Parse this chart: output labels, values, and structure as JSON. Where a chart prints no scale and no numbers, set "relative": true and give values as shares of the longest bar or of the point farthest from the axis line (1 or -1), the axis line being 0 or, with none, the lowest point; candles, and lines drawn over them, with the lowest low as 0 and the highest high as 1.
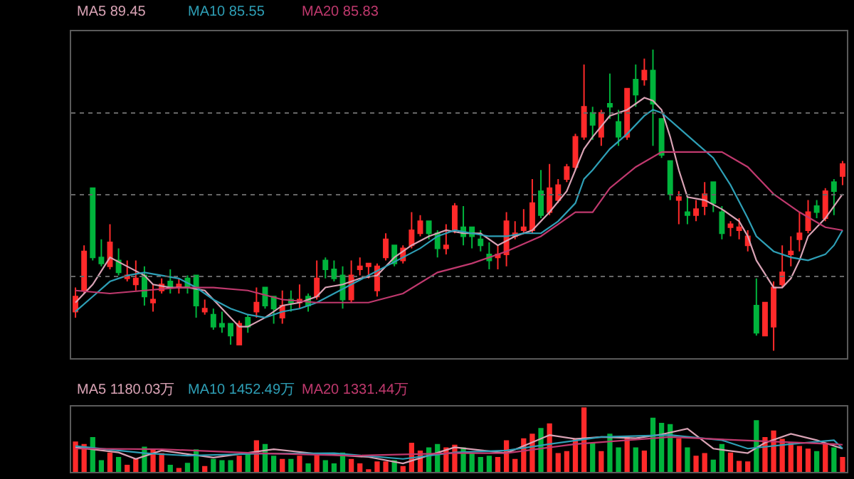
{
  "chart_data": [
    {
      "type": "candlestick",
      "relative": true,
      "grid": "y",
      "categories": [
        null,
        null,
        null,
        null,
        null,
        null,
        null,
        null,
        null,
        null,
        null,
        null,
        null,
        null,
        null,
        null,
        null,
        null,
        null,
        null,
        null,
        null,
        null,
        null,
        null,
        null,
        null,
        null,
        null,
        null,
        null,
        null,
        null,
        null,
        null,
        null,
        null,
        null,
        null,
        null,
        null,
        null,
        null,
        null,
        null,
        null,
        null,
        null,
        null,
        null,
        null,
        null,
        null,
        null,
        null,
        null,
        null,
        null,
        null,
        null,
        null,
        null,
        null,
        null,
        null,
        null,
        null,
        null,
        null,
        null,
        null,
        null,
        null,
        null,
        null,
        null,
        null,
        null,
        null,
        null,
        null,
        null,
        null,
        null,
        null,
        null,
        null,
        null,
        null,
        null
      ],
      "ohlc": [
        [
          0.13,
          0.21,
          0.11,
          0.18
        ],
        [
          0.2,
          0.35,
          0.19,
          0.33
        ],
        [
          0.54,
          0.54,
          0.3,
          0.31
        ],
        [
          0.31,
          0.37,
          0.28,
          0.29
        ],
        [
          0.28,
          0.42,
          0.27,
          0.36
        ],
        [
          0.3,
          0.34,
          0.25,
          0.26
        ],
        [
          0.24,
          0.3,
          0.23,
          0.25
        ],
        [
          0.22,
          0.3,
          0.2,
          0.24
        ],
        [
          0.25,
          0.28,
          0.15,
          0.18
        ],
        [
          0.16,
          0.22,
          0.13,
          0.17
        ],
        [
          0.2,
          0.24,
          0.19,
          0.22
        ],
        [
          0.23,
          0.27,
          0.19,
          0.21
        ],
        [
          0.21,
          0.24,
          0.19,
          0.22
        ],
        [
          0.24,
          0.25,
          0.19,
          0.21
        ],
        [
          0.25,
          0.25,
          0.11,
          0.15
        ],
        [
          0.13,
          0.17,
          0.12,
          0.14
        ],
        [
          0.12,
          0.14,
          0.07,
          0.08
        ],
        [
          0.09,
          0.13,
          0.06,
          0.08
        ],
        [
          0.09,
          0.09,
          0.02,
          0.05
        ],
        [
          0.02,
          0.1,
          0.02,
          0.09
        ],
        [
          0.11,
          0.12,
          0.06,
          0.08
        ],
        [
          0.13,
          0.21,
          0.11,
          0.16
        ],
        [
          0.21,
          0.21,
          0.14,
          0.15
        ],
        [
          0.18,
          0.18,
          0.09,
          0.14
        ],
        [
          0.11,
          0.2,
          0.09,
          0.15
        ],
        [
          0.17,
          0.2,
          0.13,
          0.16
        ],
        [
          0.16,
          0.22,
          0.14,
          0.17
        ],
        [
          0.18,
          0.19,
          0.13,
          0.15
        ],
        [
          0.18,
          0.3,
          0.17,
          0.24
        ],
        [
          0.3,
          0.31,
          0.24,
          0.27
        ],
        [
          0.27,
          0.3,
          0.23,
          0.24
        ],
        [
          0.25,
          0.28,
          0.14,
          0.17
        ],
        [
          0.17,
          0.3,
          0.16,
          0.25
        ],
        [
          0.27,
          0.31,
          0.25,
          0.28
        ],
        [
          0.28,
          0.29,
          0.24,
          0.29
        ],
        [
          0.2,
          0.29,
          0.18,
          0.28
        ],
        [
          0.31,
          0.39,
          0.3,
          0.37
        ],
        [
          0.35,
          0.35,
          0.28,
          0.29
        ],
        [
          0.3,
          0.35,
          0.29,
          0.34
        ],
        [
          0.35,
          0.46,
          0.34,
          0.4
        ],
        [
          0.39,
          0.45,
          0.38,
          0.43
        ],
        [
          0.43,
          0.43,
          0.37,
          0.39
        ],
        [
          0.39,
          0.4,
          0.31,
          0.34
        ],
        [
          0.34,
          0.42,
          0.32,
          0.35
        ],
        [
          0.4,
          0.49,
          0.39,
          0.48
        ],
        [
          0.41,
          0.48,
          0.35,
          0.38
        ],
        [
          0.41,
          0.41,
          0.34,
          0.38
        ],
        [
          0.37,
          0.4,
          0.33,
          0.35
        ],
        [
          0.32,
          0.36,
          0.27,
          0.3
        ],
        [
          0.31,
          0.35,
          0.27,
          0.32
        ],
        [
          0.32,
          0.46,
          0.28,
          0.43
        ],
        [
          0.38,
          0.43,
          0.37,
          0.39
        ],
        [
          0.4,
          0.47,
          0.39,
          0.41
        ],
        [
          0.4,
          0.57,
          0.39,
          0.49
        ],
        [
          0.53,
          0.6,
          0.44,
          0.45
        ],
        [
          0.46,
          0.62,
          0.45,
          0.54
        ],
        [
          0.5,
          0.57,
          0.49,
          0.55
        ],
        [
          0.57,
          0.62,
          0.56,
          0.61
        ],
        [
          0.61,
          0.72,
          0.6,
          0.71
        ],
        [
          0.71,
          0.95,
          0.7,
          0.81
        ],
        [
          0.79,
          0.81,
          0.7,
          0.75
        ],
        [
          0.71,
          0.8,
          0.68,
          0.79
        ],
        [
          0.82,
          0.92,
          0.77,
          0.81
        ],
        [
          0.76,
          0.8,
          0.68,
          0.71
        ],
        [
          0.71,
          0.87,
          0.7,
          0.87
        ],
        [
          0.9,
          0.95,
          0.81,
          0.85
        ],
        [
          0.9,
          0.97,
          0.88,
          0.93
        ],
        [
          0.93,
          1,
          0.68,
          0.82
        ],
        [
          0.77,
          0.77,
          0.64,
          0.65
        ],
        [
          0.63,
          0.63,
          0.5,
          0.52
        ],
        [
          0.5,
          0.53,
          0.42,
          0.51
        ],
        [
          0.46,
          0.51,
          0.42,
          0.45
        ],
        [
          0.45,
          0.5,
          0.43,
          0.47
        ],
        [
          0.48,
          0.56,
          0.45,
          0.52
        ],
        [
          0.56,
          0.56,
          0.46,
          0.49
        ],
        [
          0.46,
          0.48,
          0.37,
          0.39
        ],
        [
          0.41,
          0.43,
          0.38,
          0.42
        ],
        [
          0.4,
          0.44,
          0.37,
          0.41
        ],
        [
          0.35,
          0.4,
          0.33,
          0.38
        ],
        [
          0.15,
          0.24,
          0.05,
          0.06
        ],
        [
          0.05,
          0.16,
          0.05,
          0.16
        ],
        [
          0.08,
          0.23,
          0,
          0.21
        ],
        [
          0.22,
          0.35,
          0.21,
          0.26
        ],
        [
          0.32,
          0.38,
          0.28,
          0.33
        ],
        [
          0.37,
          0.46,
          0.33,
          0.39
        ],
        [
          0.4,
          0.5,
          0.39,
          0.46
        ],
        [
          0.48,
          0.5,
          0.44,
          0.46
        ],
        [
          0.44,
          0.54,
          0.43,
          0.53
        ],
        [
          0.56,
          0.57,
          0.45,
          0.53
        ],
        [
          0.58,
          0.63,
          0.55,
          0.62
        ]
      ],
      "series": [
        {
          "name": "MA5 89.45",
          "type": "line",
          "color": "#d9a3b5",
          "values": [
            0.16,
            null,
            0.22,
            null,
            0.31,
            null,
            0.28,
            null,
            0.25,
            0.22,
            null,
            0.21,
            null,
            0.21,
            null,
            0.2,
            null,
            0.14,
            null,
            0.08,
            0.08,
            null,
            0.11,
            null,
            0.15,
            null,
            0.16,
            null,
            0.18,
            0.21,
            null,
            0.22,
            null,
            0.24,
            null,
            0.25,
            null,
            0.31,
            null,
            0.35,
            null,
            0.38,
            null,
            0.4,
            null,
            0.39,
            null,
            0.39,
            null,
            0.35,
            null,
            0.38,
            null,
            0.4,
            null,
            0.46,
            null,
            0.53,
            null,
            0.67,
            0.71,
            null,
            0.78,
            null,
            0.8,
            null,
            0.84,
            0.83,
            0.8,
            0.71,
            0.6,
            0.51,
            null,
            0.5,
            null,
            0.47,
            null,
            0.43,
            0.38,
            0.3,
            null,
            0.21,
            0.21,
            0.24,
            0.3,
            0.38,
            null,
            0.44,
            0.48,
            0.52
          ]
        },
        {
          "name": "MA10 85.55",
          "type": "line",
          "color": "#2e9fb6",
          "values": [
            0.13,
            null,
            0.18,
            null,
            0.23,
            null,
            0.25,
            null,
            0.26,
            null,
            0.25,
            null,
            0.24,
            null,
            0.21,
            null,
            0.17,
            null,
            0.14,
            null,
            0.12,
            null,
            0.11,
            null,
            0.13,
            null,
            0.14,
            null,
            0.16,
            null,
            0.19,
            null,
            0.22,
            null,
            0.25,
            null,
            0.28,
            null,
            0.31,
            null,
            0.34,
            null,
            0.38,
            null,
            0.4,
            null,
            0.39,
            null,
            0.38,
            null,
            0.38,
            null,
            0.39,
            null,
            0.39,
            null,
            0.43,
            null,
            0.49,
            0.57,
            0.6,
            null,
            0.67,
            null,
            0.72,
            null,
            0.78,
            0.8,
            0.79,
            null,
            0.74,
            null,
            0.69,
            null,
            0.64,
            null,
            0.55,
            null,
            0.44,
            0.38,
            null,
            0.33,
            null,
            0.31,
            null,
            0.3,
            null,
            0.32,
            0.35,
            0.4
          ]
        },
        {
          "name": "MA20 85.83",
          "type": "line",
          "color": "#c0396e",
          "values": [
            0.2,
            null,
            null,
            null,
            0.19,
            null,
            null,
            null,
            0.2,
            null,
            null,
            null,
            0.21,
            null,
            null,
            null,
            0.21,
            null,
            null,
            null,
            0.2,
            null,
            null,
            null,
            0.17,
            null,
            null,
            null,
            0.16,
            null,
            0.16,
            null,
            null,
            null,
            0.16,
            null,
            null,
            null,
            0.19,
            null,
            null,
            null,
            0.26,
            null,
            null,
            null,
            0.29,
            null,
            null,
            null,
            0.33,
            null,
            null,
            null,
            0.38,
            null,
            null,
            null,
            0.46,
            null,
            0.46,
            null,
            0.54,
            null,
            null,
            0.61,
            null,
            null,
            0.66,
            null,
            null,
            null,
            0.66,
            null,
            null,
            0.66,
            null,
            null,
            0.61,
            null,
            null,
            0.52,
            null,
            null,
            0.46,
            null,
            null,
            0.41,
            null,
            0.4
          ]
        }
      ]
    },
    {
      "type": "bar",
      "relative": true,
      "categories": [
        null,
        null,
        null,
        null,
        null,
        null,
        null,
        null,
        null,
        null,
        null,
        null,
        null,
        null,
        null,
        null,
        null,
        null,
        null,
        null,
        null,
        null,
        null,
        null,
        null,
        null,
        null,
        null,
        null,
        null,
        null,
        null,
        null,
        null,
        null,
        null,
        null,
        null,
        null,
        null,
        null,
        null,
        null,
        null,
        null,
        null,
        null,
        null,
        null,
        null,
        null,
        null,
        null,
        null,
        null,
        null,
        null,
        null,
        null,
        null,
        null,
        null,
        null,
        null,
        null,
        null,
        null,
        null,
        null,
        null,
        null,
        null,
        null,
        null,
        null,
        null,
        null,
        null,
        null,
        null,
        null,
        null,
        null,
        null,
        null,
        null,
        null,
        null,
        null,
        null
      ],
      "values": [
        0.47,
        0.43,
        0.54,
        0.18,
        0.3,
        0.23,
        0.11,
        0.2,
        0.39,
        0.35,
        0.29,
        0.11,
        0.06,
        0.14,
        0.35,
        0.09,
        0.2,
        0.18,
        0.18,
        0.25,
        0.28,
        0.49,
        0.43,
        0.25,
        0.2,
        0.2,
        0.25,
        0.13,
        0.29,
        0.18,
        0.13,
        0.3,
        0.2,
        0.13,
        0.04,
        0.16,
        0.16,
        0.18,
        0.09,
        0.45,
        0.33,
        0.38,
        0.43,
        0.38,
        0.42,
        0.38,
        0.29,
        0.23,
        0.25,
        0.23,
        0.49,
        0.2,
        0.52,
        0.59,
        0.68,
        0.75,
        0.29,
        0.32,
        0.52,
        1,
        0.45,
        0.32,
        0.59,
        0.38,
        0.55,
        0.38,
        0.33,
        0.84,
        0.76,
        0.74,
        0.52,
        0.38,
        0.25,
        0.29,
        0.19,
        0.43,
        0.3,
        0.17,
        0.16,
        0.8,
        0.54,
        0.64,
        0.51,
        0.45,
        0.4,
        0.36,
        0.32,
        0.43,
        0.38,
        0.23
      ],
      "colors": [
        "#ff2a2a",
        "#ff2a2a",
        "#00b43c",
        "#00b43c",
        "#ff2a2a",
        "#00b43c",
        "#ff2a2a",
        "#ff2a2a",
        "#00b43c",
        "#ff2a2a",
        "#ff2a2a",
        "#00b43c",
        "#ff2a2a",
        "#00b43c",
        "#00b43c",
        "#ff2a2a",
        "#00b43c",
        "#00b43c",
        "#00b43c",
        "#ff2a2a",
        "#00b43c",
        "#ff2a2a",
        "#00b43c",
        "#00b43c",
        "#ff2a2a",
        "#00b43c",
        "#ff2a2a",
        "#00b43c",
        "#ff2a2a",
        "#00b43c",
        "#00b43c",
        "#00b43c",
        "#ff2a2a",
        "#ff2a2a",
        "#ff2a2a",
        "#ff2a2a",
        "#ff2a2a",
        "#00b43c",
        "#ff2a2a",
        "#ff2a2a",
        "#ff2a2a",
        "#00b43c",
        "#00b43c",
        "#ff2a2a",
        "#ff2a2a",
        "#00b43c",
        "#00b43c",
        "#00b43c",
        "#00b43c",
        "#ff2a2a",
        "#ff2a2a",
        "#ff2a2a",
        "#ff2a2a",
        "#ff2a2a",
        "#00b43c",
        "#ff2a2a",
        "#ff2a2a",
        "#ff2a2a",
        "#ff2a2a",
        "#ff2a2a",
        "#00b43c",
        "#ff2a2a",
        "#00b43c",
        "#00b43c",
        "#ff2a2a",
        "#00b43c",
        "#ff2a2a",
        "#00b43c",
        "#00b43c",
        "#00b43c",
        "#ff2a2a",
        "#00b43c",
        "#ff2a2a",
        "#ff2a2a",
        "#00b43c",
        "#00b43c",
        "#ff2a2a",
        "#ff2a2a",
        "#ff2a2a",
        "#00b43c",
        "#ff2a2a",
        "#ff2a2a",
        "#ff2a2a",
        "#ff2a2a",
        "#ff2a2a",
        "#ff2a2a",
        "#00b43c",
        "#ff2a2a",
        "#00b43c",
        "#ff2a2a"
      ],
      "series": [
        {
          "name": "MA5 1180.03万",
          "type": "line",
          "color": "#d9a3b5",
          "values": [
            0.38,
            null,
            null,
            null,
            null,
            0.3,
            null,
            0.2,
            null,
            null,
            0.33,
            null,
            null,
            null,
            null,
            null,
            0.22,
            null,
            null,
            null,
            null,
            null,
            null,
            0.35,
            null,
            null,
            null,
            null,
            0.28,
            null,
            null,
            null,
            null,
            null,
            0.23,
            null,
            null,
            null,
            0.13,
            null,
            null,
            null,
            null,
            null,
            0.38,
            null,
            null,
            null,
            null,
            null,
            0.29,
            null,
            null,
            null,
            null,
            0.57,
            null,
            null,
            0.51,
            null,
            null,
            0.54,
            null,
            null,
            null,
            0.52,
            null,
            null,
            0.58,
            null,
            null,
            0.67,
            null,
            null,
            0.36,
            null,
            null,
            null,
            0.29,
            null,
            0.45,
            null,
            null,
            0.59,
            null,
            null,
            0.49,
            null,
            null,
            0.36
          ]
        },
        {
          "name": "MA10 1452.49万",
          "type": "line",
          "color": "#2e9fb6",
          "values": [
            0.4,
            null,
            null,
            null,
            null,
            null,
            null,
            null,
            0.29,
            null,
            null,
            null,
            null,
            0.25,
            null,
            null,
            null,
            null,
            null,
            null,
            null,
            0.28,
            null,
            null,
            null,
            null,
            null,
            null,
            null,
            null,
            0.29,
            null,
            null,
            null,
            null,
            null,
            null,
            null,
            0.2,
            null,
            null,
            null,
            null,
            null,
            0.3,
            null,
            null,
            null,
            null,
            null,
            0.33,
            null,
            null,
            null,
            null,
            0.43,
            null,
            null,
            null,
            null,
            null,
            0.54,
            null,
            null,
            null,
            null,
            null,
            null,
            null,
            0.57,
            null,
            null,
            null,
            null,
            null,
            0.49,
            null,
            null,
            0.36,
            null,
            null,
            null,
            null,
            0.43,
            null,
            null,
            null,
            null,
            0.49,
            0.36
          ]
        },
        {
          "name": "MA20 1331.44万",
          "type": "line",
          "color": "#c0396e",
          "values": [
            0.36,
            null,
            null,
            null,
            null,
            null,
            null,
            null,
            null,
            null,
            0.35,
            null,
            null,
            null,
            null,
            null,
            null,
            null,
            null,
            null,
            null,
            0.29,
            null,
            null,
            null,
            null,
            null,
            null,
            null,
            null,
            null,
            null,
            0.25,
            null,
            null,
            null,
            null,
            null,
            null,
            null,
            null,
            null,
            null,
            null,
            0.29,
            null,
            null,
            null,
            null,
            null,
            0.29,
            null,
            null,
            null,
            null,
            null,
            null,
            null,
            0.43,
            null,
            null,
            null,
            null,
            null,
            null,
            null,
            null,
            null,
            null,
            0.54,
            null,
            null,
            null,
            null,
            null,
            null,
            null,
            0.49,
            null,
            null,
            null,
            null,
            null,
            null,
            null,
            null,
            null,
            null,
            0.43,
            0.42
          ]
        }
      ]
    }
  ]
}
